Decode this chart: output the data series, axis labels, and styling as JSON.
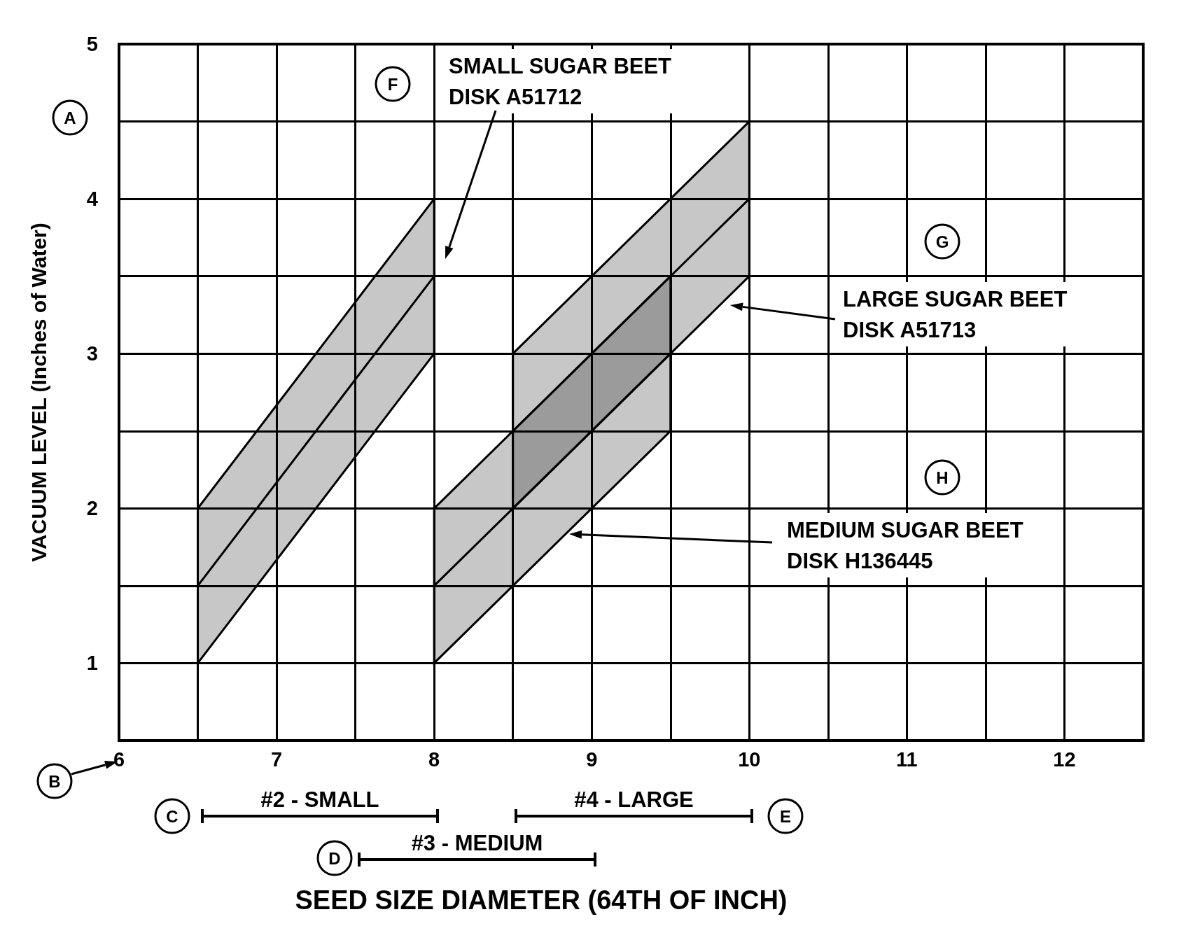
{
  "chart_data": {
    "type": "line",
    "xlabel": "SEED SIZE DIAMETER (64TH OF INCH)",
    "ylabel": "VACUUM LEVEL (Inches of Water)",
    "xlim": [
      6,
      12.5
    ],
    "xticks": [
      6,
      {
        "value": 6.5,
        "label": null
      },
      7,
      {
        "value": 7.5,
        "label": null
      },
      8,
      {
        "value": 8.5,
        "label": null
      },
      9,
      {
        "value": 9.5,
        "label": null
      },
      10,
      {
        "value": 10.5,
        "label": null
      },
      11,
      {
        "value": 11.5,
        "label": null
      },
      12,
      {
        "value": 12.5,
        "label": null
      }
    ],
    "ylim": [
      0.5,
      5
    ],
    "yticks": [
      {
        "value": 0.5,
        "label": null
      },
      1,
      {
        "value": 1.5,
        "label": null
      },
      2,
      {
        "value": 2.5,
        "label": null
      },
      3,
      {
        "value": 3.5,
        "label": null
      },
      4,
      {
        "value": 4.5,
        "label": null
      },
      5
    ],
    "grid": true,
    "series": [
      {
        "color": "#000000",
        "x": [
          6.5,
          8
        ],
        "values": [
          1.5,
          3.5
        ],
        "lower": [
          1,
          3
        ],
        "upper": [
          2,
          4
        ]
      },
      {
        "color": "#000000",
        "x": [
          8,
          9.5
        ],
        "values": [
          1.5,
          3
        ],
        "lower": [
          1,
          2.5
        ],
        "upper": [
          2,
          3.5
        ]
      },
      {
        "color": "#000000",
        "x": [
          8.5,
          10
        ],
        "values": [
          2.5,
          4
        ],
        "lower": [
          2,
          3.5
        ],
        "upper": [
          3,
          4.5
        ]
      }
    ],
    "annotations": [
      "SMALL SUGAR BEET\nDISK A51712",
      "LARGE SUGAR BEET\nDISK A51713",
      "MEDIUM SUGAR BEET\nDISK H136445",
      "#2 - SMALL",
      "#3 - MEDIUM",
      "#4 - LARGE",
      "A",
      "B",
      "C",
      "D",
      "E",
      "F",
      "G",
      "H"
    ]
  }
}
